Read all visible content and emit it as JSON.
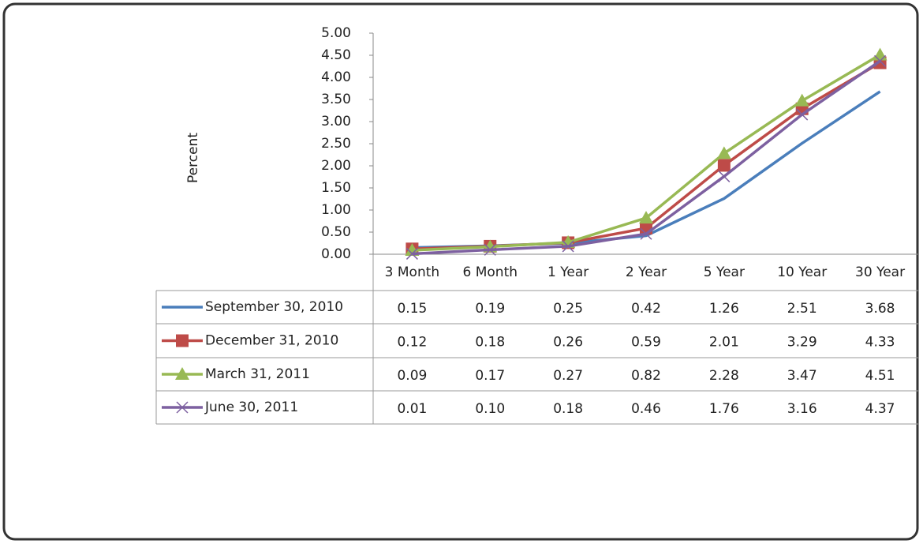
{
  "chart_data": {
    "type": "line",
    "y_label": "Percent",
    "categories": [
      "3 Month",
      "6 Month",
      "1 Year",
      "2 Year",
      "5 Year",
      "10 Year",
      "30 Year"
    ],
    "series": [
      {
        "name": "September 30, 2010",
        "color": "#4a7ebb",
        "marker": "none",
        "values": [
          0.15,
          0.19,
          0.25,
          0.42,
          1.26,
          2.51,
          3.68
        ],
        "value_labels": [
          "0.15",
          "0.19",
          "0.25",
          "0.42",
          "1.26",
          "2.51",
          "3.68"
        ]
      },
      {
        "name": "December 31, 2010",
        "color": "#be4b48",
        "marker": "square",
        "values": [
          0.12,
          0.18,
          0.26,
          0.59,
          2.01,
          3.29,
          4.33
        ],
        "value_labels": [
          "0.12",
          "0.18",
          "0.26",
          "0.59",
          "2.01",
          "3.29",
          "4.33"
        ]
      },
      {
        "name": "March 31, 2011",
        "color": "#98b954",
        "marker": "triangle",
        "values": [
          0.09,
          0.17,
          0.27,
          0.82,
          2.28,
          3.47,
          4.51
        ],
        "value_labels": [
          "0.09",
          "0.17",
          "0.27",
          "0.82",
          "2.28",
          "3.47",
          "4.51"
        ]
      },
      {
        "name": "June 30, 2011",
        "color": "#7d60a0",
        "marker": "x",
        "values": [
          0.01,
          0.1,
          0.18,
          0.46,
          1.76,
          3.16,
          4.37
        ],
        "value_labels": [
          "0.01",
          "0.10",
          "0.18",
          "0.46",
          "1.76",
          "3.16",
          "4.37"
        ]
      }
    ],
    "ylim": [
      0,
      5
    ],
    "yticks": [
      {
        "value": 0,
        "label": "0.00"
      },
      {
        "value": 0.5,
        "label": "0.50"
      },
      {
        "value": 1,
        "label": "1.00"
      },
      {
        "value": 1.5,
        "label": "1.50"
      },
      {
        "value": 2,
        "label": "2.00"
      },
      {
        "value": 2.5,
        "label": "2.50"
      },
      {
        "value": 3,
        "label": "3.00"
      },
      {
        "value": 3.5,
        "label": "3.50"
      },
      {
        "value": 4,
        "label": "4.00"
      },
      {
        "value": 4.5,
        "label": "4.50"
      },
      {
        "value": 5,
        "label": "5.00"
      }
    ],
    "grid": false,
    "data_table": true
  }
}
